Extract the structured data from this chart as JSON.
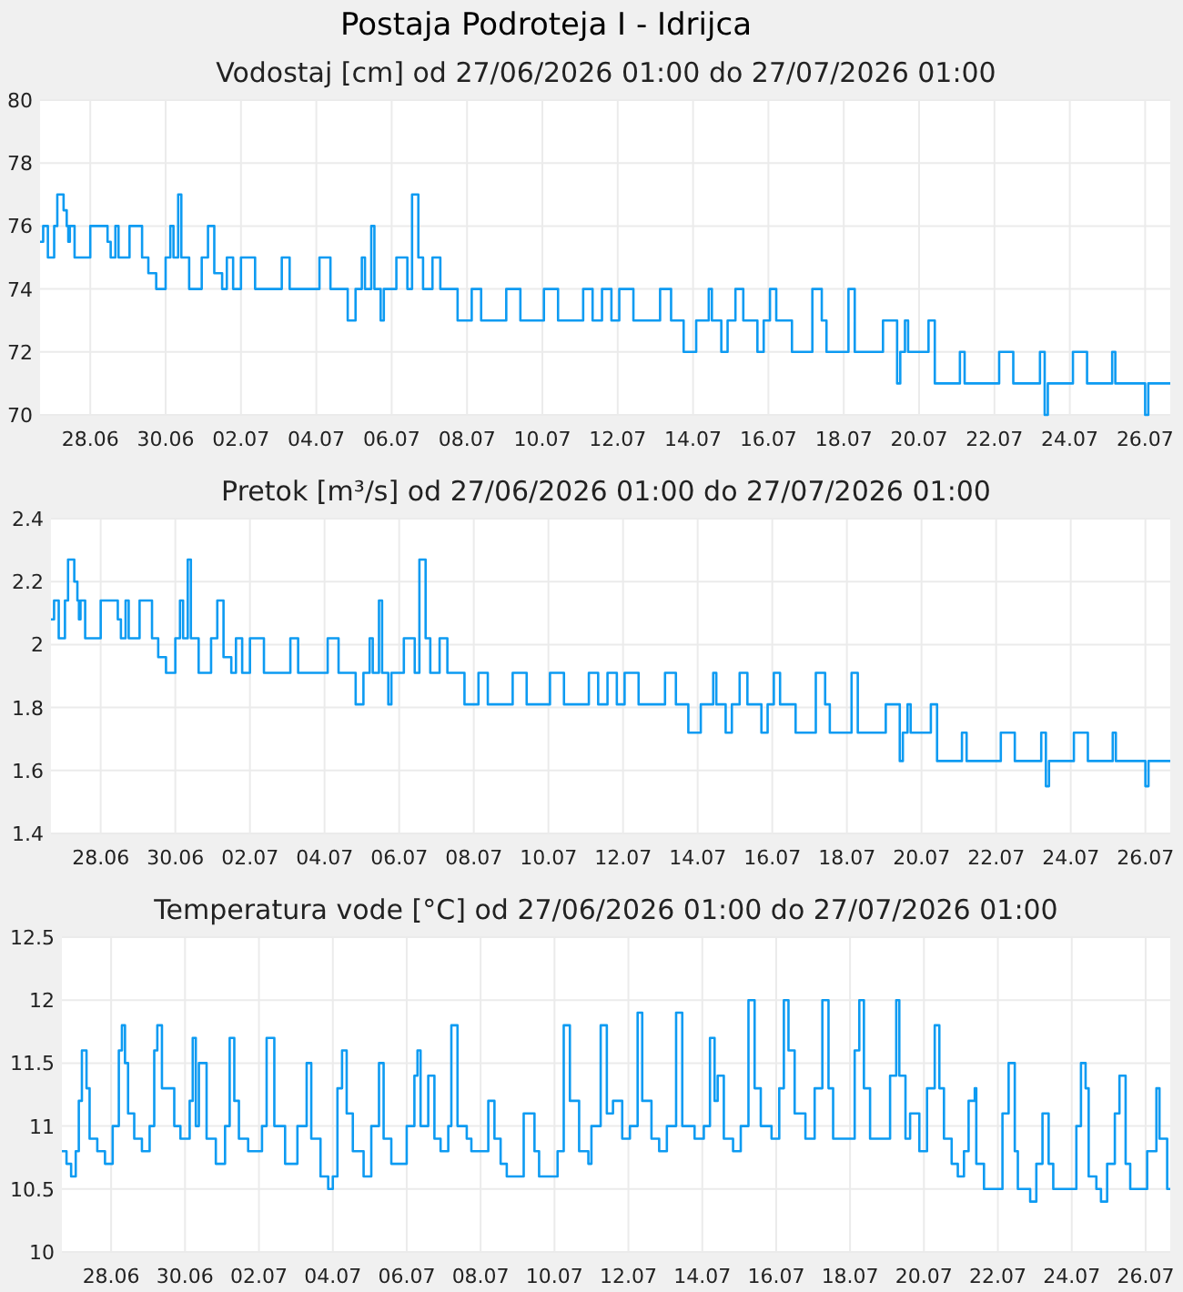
{
  "chart_data": [
    {
      "type": "step",
      "title": "Postaja Podroteja I - Idrijca",
      "subtitle": "Vodostaj [cm] od 27/06/2026 01:00 do 27/07/2026 01:00",
      "x": [
        "2026-06-27T01:00",
        "2026-06-27T03:00",
        "2026-06-27T06:00",
        "2026-06-27T10:00",
        "2026-06-27T12:00",
        "2026-06-27T16:00",
        "2026-06-27T18:00",
        "2026-06-27T19:00",
        "2026-06-27T20:00",
        "2026-06-27T23:00",
        "2026-06-28T09:00",
        "2026-06-28T20:00",
        "2026-06-28T22:00",
        "2026-06-29T01:00",
        "2026-06-29T03:00",
        "2026-06-29T10:00",
        "2026-06-29T18:00",
        "2026-06-29T22:00",
        "2026-06-30T03:00",
        "2026-06-30T09:00",
        "2026-06-30T12:00",
        "2026-06-30T14:00",
        "2026-06-30T17:00",
        "2026-06-30T19:00",
        "2026-07-01T00:00",
        "2026-07-01T08:00",
        "2026-07-01T12:00",
        "2026-07-01T16:00",
        "2026-07-01T21:00",
        "2026-07-02T00:00",
        "2026-07-02T04:00",
        "2026-07-02T09:00",
        "2026-07-02T18:00",
        "2026-07-03T11:00",
        "2026-07-03T16:00",
        "2026-07-04T11:00",
        "2026-07-04T18:00",
        "2026-07-05T05:00",
        "2026-07-05T10:00",
        "2026-07-05T14:00",
        "2026-07-05T16:00",
        "2026-07-05T20:00",
        "2026-07-05T22:00",
        "2026-07-06T02:00",
        "2026-07-06T04:00",
        "2026-07-06T12:00",
        "2026-07-06T19:00",
        "2026-07-06T22:00",
        "2026-07-07T02:00",
        "2026-07-07T05:00",
        "2026-07-07T11:00",
        "2026-07-07T16:00",
        "2026-07-08T03:00",
        "2026-07-08T12:00",
        "2026-07-08T18:00",
        "2026-07-09T10:00",
        "2026-07-09T19:00",
        "2026-07-10T10:00",
        "2026-07-10T19:00",
        "2026-07-11T11:00",
        "2026-07-11T17:00",
        "2026-07-11T23:00",
        "2026-07-12T05:00",
        "2026-07-12T10:00",
        "2026-07-12T19:00",
        "2026-07-13T12:00",
        "2026-07-13T19:00",
        "2026-07-14T03:00",
        "2026-07-14T11:00",
        "2026-07-14T19:00",
        "2026-07-14T21:00",
        "2026-07-15T03:00",
        "2026-07-15T07:00",
        "2026-07-15T12:00",
        "2026-07-15T17:00",
        "2026-07-16T02:00",
        "2026-07-16T06:00",
        "2026-07-16T10:00",
        "2026-07-16T14:00",
        "2026-07-17T00:00",
        "2026-07-17T13:00",
        "2026-07-17T19:00",
        "2026-07-17T22:00",
        "2026-07-18T12:00",
        "2026-07-18T16:00",
        "2026-07-19T10:00",
        "2026-07-19T19:00",
        "2026-07-19T21:00",
        "2026-07-20T00:00",
        "2026-07-20T02:00",
        "2026-07-20T15:00",
        "2026-07-20T19:00",
        "2026-07-21T11:00",
        "2026-07-21T14:00",
        "2026-07-22T12:00",
        "2026-07-22T21:00",
        "2026-07-23T14:00",
        "2026-07-23T17:00",
        "2026-07-23T19:00",
        "2026-07-24T11:00",
        "2026-07-24T20:00",
        "2026-07-25T12:00",
        "2026-07-25T14:00",
        "2026-07-26T09:00",
        "2026-07-26T11:00",
        "2026-07-27T01:00"
      ],
      "series": [
        {
          "color": "#0d9bf2",
          "values": [
            75.5,
            76,
            75,
            76,
            77,
            76.5,
            76,
            75.5,
            76,
            75,
            76,
            75.5,
            75,
            76,
            75,
            76,
            75,
            74.5,
            74,
            75,
            76,
            75,
            77,
            75,
            74,
            75,
            76,
            74.5,
            74,
            75,
            74,
            75,
            74,
            75,
            74,
            75,
            74,
            73,
            74,
            75,
            74,
            76,
            74,
            73,
            74,
            75,
            74,
            77,
            75,
            74,
            75,
            74,
            73,
            74,
            73,
            74,
            73,
            74,
            73,
            74,
            73,
            74,
            73,
            74,
            73,
            74,
            73,
            72,
            73,
            74,
            73,
            72,
            73,
            74,
            73,
            72,
            73,
            74,
            73,
            72,
            74,
            73,
            72,
            74,
            72,
            73,
            71,
            72,
            73,
            72,
            73,
            71,
            72,
            71,
            72,
            71,
            72,
            70,
            71,
            72,
            71,
            72,
            71,
            70,
            71,
            71
          ]
        }
      ],
      "xlim": [
        "2026-06-27T01:00",
        "2026-07-27T01:00"
      ],
      "xticks": [
        {
          "value": "2026-06-28T09:00",
          "label": "28.06"
        },
        {
          "value": "2026-06-30T09:00",
          "label": "30.06"
        },
        {
          "value": "2026-07-02T09:00",
          "label": "02.07"
        },
        {
          "value": "2026-07-04T09:00",
          "label": "04.07"
        },
        {
          "value": "2026-07-06T09:00",
          "label": "06.07"
        },
        {
          "value": "2026-07-08T09:00",
          "label": "08.07"
        },
        {
          "value": "2026-07-10T09:00",
          "label": "10.07"
        },
        {
          "value": "2026-07-12T09:00",
          "label": "12.07"
        },
        {
          "value": "2026-07-14T09:00",
          "label": "14.07"
        },
        {
          "value": "2026-07-16T09:00",
          "label": "16.07"
        },
        {
          "value": "2026-07-18T09:00",
          "label": "18.07"
        },
        {
          "value": "2026-07-20T09:00",
          "label": "20.07"
        },
        {
          "value": "2026-07-22T09:00",
          "label": "22.07"
        },
        {
          "value": "2026-07-24T09:00",
          "label": "24.07"
        },
        {
          "value": "2026-07-26T09:00",
          "label": "26.07"
        }
      ],
      "ylim": [
        70,
        80
      ],
      "yticks": [
        70,
        72,
        74,
        76,
        78,
        80
      ],
      "grid": true
    },
    {
      "type": "step",
      "title": "Pretok [m³/s] od 27/06/2026 01:00 do 27/07/2026 01:00",
      "x": [
        "2026-06-27T01:00",
        "2026-06-27T03:00",
        "2026-06-27T06:00",
        "2026-06-27T10:00",
        "2026-06-27T12:00",
        "2026-06-27T16:00",
        "2026-06-27T18:00",
        "2026-06-27T19:00",
        "2026-06-27T20:00",
        "2026-06-27T23:00",
        "2026-06-28T09:00",
        "2026-06-28T20:00",
        "2026-06-28T22:00",
        "2026-06-29T01:00",
        "2026-06-29T03:00",
        "2026-06-29T10:00",
        "2026-06-29T18:00",
        "2026-06-29T22:00",
        "2026-06-30T03:00",
        "2026-06-30T09:00",
        "2026-06-30T12:00",
        "2026-06-30T14:00",
        "2026-06-30T17:00",
        "2026-06-30T19:00",
        "2026-07-01T00:00",
        "2026-07-01T08:00",
        "2026-07-01T12:00",
        "2026-07-01T16:00",
        "2026-07-01T21:00",
        "2026-07-02T00:00",
        "2026-07-02T04:00",
        "2026-07-02T09:00",
        "2026-07-02T18:00",
        "2026-07-03T11:00",
        "2026-07-03T16:00",
        "2026-07-04T11:00",
        "2026-07-04T18:00",
        "2026-07-05T05:00",
        "2026-07-05T10:00",
        "2026-07-05T14:00",
        "2026-07-05T16:00",
        "2026-07-05T20:00",
        "2026-07-05T22:00",
        "2026-07-06T02:00",
        "2026-07-06T04:00",
        "2026-07-06T12:00",
        "2026-07-06T19:00",
        "2026-07-06T22:00",
        "2026-07-07T02:00",
        "2026-07-07T05:00",
        "2026-07-07T11:00",
        "2026-07-07T16:00",
        "2026-07-08T03:00",
        "2026-07-08T12:00",
        "2026-07-08T18:00",
        "2026-07-09T10:00",
        "2026-07-09T19:00",
        "2026-07-10T10:00",
        "2026-07-10T19:00",
        "2026-07-11T11:00",
        "2026-07-11T17:00",
        "2026-07-11T23:00",
        "2026-07-12T05:00",
        "2026-07-12T10:00",
        "2026-07-12T19:00",
        "2026-07-13T12:00",
        "2026-07-13T19:00",
        "2026-07-14T03:00",
        "2026-07-14T11:00",
        "2026-07-14T19:00",
        "2026-07-14T21:00",
        "2026-07-15T03:00",
        "2026-07-15T07:00",
        "2026-07-15T12:00",
        "2026-07-15T17:00",
        "2026-07-16T02:00",
        "2026-07-16T06:00",
        "2026-07-16T10:00",
        "2026-07-16T14:00",
        "2026-07-17T00:00",
        "2026-07-17T13:00",
        "2026-07-17T19:00",
        "2026-07-17T22:00",
        "2026-07-18T12:00",
        "2026-07-18T16:00",
        "2026-07-19T10:00",
        "2026-07-19T19:00",
        "2026-07-19T21:00",
        "2026-07-20T00:00",
        "2026-07-20T02:00",
        "2026-07-20T15:00",
        "2026-07-20T19:00",
        "2026-07-21T11:00",
        "2026-07-21T14:00",
        "2026-07-22T12:00",
        "2026-07-22T21:00",
        "2026-07-23T14:00",
        "2026-07-23T17:00",
        "2026-07-23T19:00",
        "2026-07-24T11:00",
        "2026-07-24T20:00",
        "2026-07-25T12:00",
        "2026-07-25T14:00",
        "2026-07-26T09:00",
        "2026-07-26T11:00",
        "2026-07-27T01:00"
      ],
      "series": [
        {
          "color": "#0d9bf2",
          "values": [
            2.08,
            2.14,
            2.02,
            2.14,
            2.27,
            2.2,
            2.14,
            2.08,
            2.14,
            2.02,
            2.14,
            2.08,
            2.02,
            2.14,
            2.02,
            2.14,
            2.02,
            1.96,
            1.91,
            2.02,
            2.14,
            2.02,
            2.27,
            2.02,
            1.91,
            2.02,
            2.14,
            1.96,
            1.91,
            2.02,
            1.91,
            2.02,
            1.91,
            2.02,
            1.91,
            2.02,
            1.91,
            1.81,
            1.91,
            2.02,
            1.91,
            2.14,
            1.91,
            1.81,
            1.91,
            2.02,
            1.91,
            2.27,
            2.02,
            1.91,
            2.02,
            1.91,
            1.81,
            1.91,
            1.81,
            1.91,
            1.81,
            1.91,
            1.81,
            1.91,
            1.81,
            1.91,
            1.81,
            1.91,
            1.81,
            1.91,
            1.81,
            1.72,
            1.81,
            1.91,
            1.81,
            1.72,
            1.81,
            1.91,
            1.81,
            1.72,
            1.81,
            1.91,
            1.81,
            1.72,
            1.91,
            1.81,
            1.72,
            1.91,
            1.72,
            1.81,
            1.63,
            1.72,
            1.81,
            1.72,
            1.81,
            1.63,
            1.72,
            1.63,
            1.72,
            1.63,
            1.72,
            1.55,
            1.63,
            1.72,
            1.63,
            1.72,
            1.63,
            1.55,
            1.63,
            1.63
          ]
        }
      ],
      "xlim": [
        "2026-06-27T01:00",
        "2026-07-27T01:00"
      ],
      "xticks": [
        {
          "value": "2026-06-28T09:00",
          "label": "28.06"
        },
        {
          "value": "2026-06-30T09:00",
          "label": "30.06"
        },
        {
          "value": "2026-07-02T09:00",
          "label": "02.07"
        },
        {
          "value": "2026-07-04T09:00",
          "label": "04.07"
        },
        {
          "value": "2026-07-06T09:00",
          "label": "06.07"
        },
        {
          "value": "2026-07-08T09:00",
          "label": "08.07"
        },
        {
          "value": "2026-07-10T09:00",
          "label": "10.07"
        },
        {
          "value": "2026-07-12T09:00",
          "label": "12.07"
        },
        {
          "value": "2026-07-14T09:00",
          "label": "14.07"
        },
        {
          "value": "2026-07-16T09:00",
          "label": "16.07"
        },
        {
          "value": "2026-07-18T09:00",
          "label": "18.07"
        },
        {
          "value": "2026-07-20T09:00",
          "label": "20.07"
        },
        {
          "value": "2026-07-22T09:00",
          "label": "22.07"
        },
        {
          "value": "2026-07-24T09:00",
          "label": "24.07"
        },
        {
          "value": "2026-07-26T09:00",
          "label": "26.07"
        }
      ],
      "ylim": [
        1.4,
        2.4
      ],
      "yticks": [
        1.4,
        1.6,
        1.8,
        2,
        2.2,
        2.4
      ],
      "grid": true
    },
    {
      "type": "step",
      "title": "Temperatura vode [°C] od 27/06/2026 01:00 do 27/07/2026 01:00",
      "x": [
        "2026-06-27T01:00",
        "2026-06-27T04:00",
        "2026-06-27T07:00",
        "2026-06-27T10:00",
        "2026-06-27T12:00",
        "2026-06-27T14:00",
        "2026-06-27T17:00",
        "2026-06-27T19:00",
        "2026-06-28T00:00",
        "2026-06-28T05:00",
        "2026-06-28T10:00",
        "2026-06-28T14:00",
        "2026-06-28T16:00",
        "2026-06-28T18:00",
        "2026-06-28T20:00",
        "2026-06-29T00:00",
        "2026-06-29T05:00",
        "2026-06-29T10:00",
        "2026-06-29T13:00",
        "2026-06-29T15:00",
        "2026-06-29T18:00",
        "2026-06-30T02:00",
        "2026-06-30T06:00",
        "2026-06-30T12:00",
        "2026-06-30T14:00",
        "2026-06-30T16:00",
        "2026-06-30T18:00",
        "2026-06-30T23:00",
        "2026-07-01T05:00",
        "2026-07-01T11:00",
        "2026-07-01T14:00",
        "2026-07-01T17:00",
        "2026-07-01T20:00",
        "2026-07-02T02:00",
        "2026-07-02T11:00",
        "2026-07-02T14:00",
        "2026-07-02T19:00",
        "2026-07-03T02:00",
        "2026-07-03T10:00",
        "2026-07-03T16:00",
        "2026-07-03T19:00",
        "2026-07-04T01:00",
        "2026-07-04T06:00",
        "2026-07-04T09:00",
        "2026-07-04T12:00",
        "2026-07-04T15:00",
        "2026-07-04T18:00",
        "2026-07-04T22:00",
        "2026-07-05T05:00",
        "2026-07-05T10:00",
        "2026-07-05T15:00",
        "2026-07-05T18:00",
        "2026-07-05T23:00",
        "2026-07-06T09:00",
        "2026-07-06T14:00",
        "2026-07-06T16:00",
        "2026-07-06T18:00",
        "2026-07-06T23:00",
        "2026-07-07T03:00",
        "2026-07-07T07:00",
        "2026-07-07T12:00",
        "2026-07-07T14:00",
        "2026-07-07T18:00",
        "2026-07-08T00:00",
        "2026-07-08T03:00",
        "2026-07-08T14:00",
        "2026-07-08T18:00",
        "2026-07-08T22:00",
        "2026-07-09T02:00",
        "2026-07-09T13:00",
        "2026-07-09T20:00",
        "2026-07-09T23:00",
        "2026-07-10T11:00",
        "2026-07-10T15:00",
        "2026-07-10T19:00",
        "2026-07-11T01:00",
        "2026-07-11T07:00",
        "2026-07-11T09:00",
        "2026-07-11T15:00",
        "2026-07-11T19:00",
        "2026-07-11T23:00",
        "2026-07-12T05:00",
        "2026-07-12T10:00",
        "2026-07-12T15:00",
        "2026-07-12T18:00",
        "2026-07-13T00:00",
        "2026-07-13T05:00",
        "2026-07-13T10:00",
        "2026-07-13T16:00",
        "2026-07-13T20:00",
        "2026-07-14T04:00",
        "2026-07-14T10:00",
        "2026-07-14T14:00",
        "2026-07-14T17:00",
        "2026-07-14T19:00",
        "2026-07-14T23:00",
        "2026-07-15T05:00",
        "2026-07-15T10:00",
        "2026-07-15T15:00",
        "2026-07-15T19:00",
        "2026-07-15T23:00",
        "2026-07-16T06:00",
        "2026-07-16T11:00",
        "2026-07-16T14:00",
        "2026-07-16T17:00",
        "2026-07-16T21:00",
        "2026-07-17T04:00",
        "2026-07-17T10:00",
        "2026-07-17T15:00",
        "2026-07-17T19:00",
        "2026-07-17T22:00",
        "2026-07-18T12:00",
        "2026-07-18T15:00",
        "2026-07-18T18:00",
        "2026-07-18T22:00",
        "2026-07-19T11:00",
        "2026-07-19T15:00",
        "2026-07-19T17:00",
        "2026-07-19T21:00",
        "2026-07-20T00:00",
        "2026-07-20T06:00",
        "2026-07-20T11:00",
        "2026-07-20T16:00",
        "2026-07-20T19:00",
        "2026-07-20T22:00",
        "2026-07-21T03:00",
        "2026-07-21T07:00",
        "2026-07-21T11:00",
        "2026-07-21T14:00",
        "2026-07-21T18:00",
        "2026-07-21T19:00",
        "2026-07-22T00:00",
        "2026-07-22T12:00",
        "2026-07-22T16:00",
        "2026-07-22T20:00",
        "2026-07-22T22:00",
        "2026-07-23T06:00",
        "2026-07-23T10:00",
        "2026-07-23T14:00",
        "2026-07-23T18:00",
        "2026-07-23T21:00",
        "2026-07-24T12:00",
        "2026-07-24T15:00",
        "2026-07-24T18:00",
        "2026-07-24T20:00",
        "2026-07-25T01:00",
        "2026-07-25T04:00",
        "2026-07-25T08:00",
        "2026-07-25T13:00",
        "2026-07-25T16:00",
        "2026-07-25T20:00",
        "2026-07-25T23:00",
        "2026-07-26T10:00",
        "2026-07-26T16:00",
        "2026-07-26T18:00",
        "2026-07-26T23:00",
        "2026-07-27T01:00"
      ],
      "series": [
        {
          "color": "#0d9bf2",
          "values": [
            10.8,
            10.7,
            10.6,
            10.8,
            11.2,
            11.6,
            11.3,
            10.9,
            10.8,
            10.7,
            11.0,
            11.6,
            11.8,
            11.5,
            11.1,
            10.9,
            10.8,
            11.0,
            11.6,
            11.8,
            11.3,
            11.0,
            10.9,
            11.2,
            11.7,
            11.0,
            11.5,
            10.9,
            10.7,
            11.0,
            11.7,
            11.2,
            10.9,
            10.8,
            11.0,
            11.7,
            11.0,
            10.7,
            11.0,
            11.5,
            10.9,
            10.6,
            10.5,
            10.6,
            11.3,
            11.6,
            11.1,
            10.8,
            10.6,
            11.0,
            11.5,
            10.9,
            10.7,
            11.0,
            11.4,
            11.6,
            11.0,
            11.4,
            10.9,
            10.8,
            11.0,
            11.8,
            11.0,
            10.9,
            10.8,
            11.2,
            10.9,
            10.7,
            10.6,
            11.1,
            10.8,
            10.6,
            10.8,
            11.8,
            11.2,
            10.8,
            10.7,
            11.0,
            11.8,
            11.1,
            11.2,
            10.9,
            11.0,
            11.9,
            11.2,
            10.9,
            10.8,
            11.0,
            11.9,
            11.0,
            10.9,
            11.0,
            11.7,
            11.2,
            11.4,
            10.9,
            10.8,
            11.0,
            12.0,
            11.3,
            11.0,
            10.9,
            11.3,
            12.0,
            11.6,
            11.1,
            10.9,
            11.3,
            12.0,
            11.3,
            10.9,
            11.6,
            12.0,
            11.3,
            10.9,
            11.4,
            12.0,
            11.4,
            10.9,
            11.1,
            10.8,
            11.3,
            11.8,
            11.3,
            10.9,
            10.7,
            10.6,
            10.8,
            11.2,
            11.3,
            10.7,
            10.5,
            11.1,
            11.5,
            10.8,
            10.5,
            10.4,
            10.7,
            11.1,
            10.7,
            10.5,
            11.0,
            11.5,
            11.3,
            10.6,
            10.5,
            10.4,
            10.7,
            11.1,
            11.4,
            10.7,
            10.5,
            10.8,
            11.3,
            10.9,
            10.5,
            10.5
          ]
        }
      ],
      "xlim": [
        "2026-06-27T01:00",
        "2026-07-27T01:00"
      ],
      "xticks": [
        {
          "value": "2026-06-28T09:00",
          "label": "28.06"
        },
        {
          "value": "2026-06-30T09:00",
          "label": "30.06"
        },
        {
          "value": "2026-07-02T09:00",
          "label": "02.07"
        },
        {
          "value": "2026-07-04T09:00",
          "label": "04.07"
        },
        {
          "value": "2026-07-06T09:00",
          "label": "06.07"
        },
        {
          "value": "2026-07-08T09:00",
          "label": "08.07"
        },
        {
          "value": "2026-07-10T09:00",
          "label": "10.07"
        },
        {
          "value": "2026-07-12T09:00",
          "label": "12.07"
        },
        {
          "value": "2026-07-14T09:00",
          "label": "14.07"
        },
        {
          "value": "2026-07-16T09:00",
          "label": "16.07"
        },
        {
          "value": "2026-07-18T09:00",
          "label": "18.07"
        },
        {
          "value": "2026-07-20T09:00",
          "label": "20.07"
        },
        {
          "value": "2026-07-22T09:00",
          "label": "22.07"
        },
        {
          "value": "2026-07-24T09:00",
          "label": "24.07"
        },
        {
          "value": "2026-07-26T09:00",
          "label": "26.07"
        }
      ],
      "ylim": [
        10,
        12.5
      ],
      "yticks": [
        10,
        10.5,
        11,
        11.5,
        12,
        12.5
      ],
      "grid": true
    }
  ]
}
